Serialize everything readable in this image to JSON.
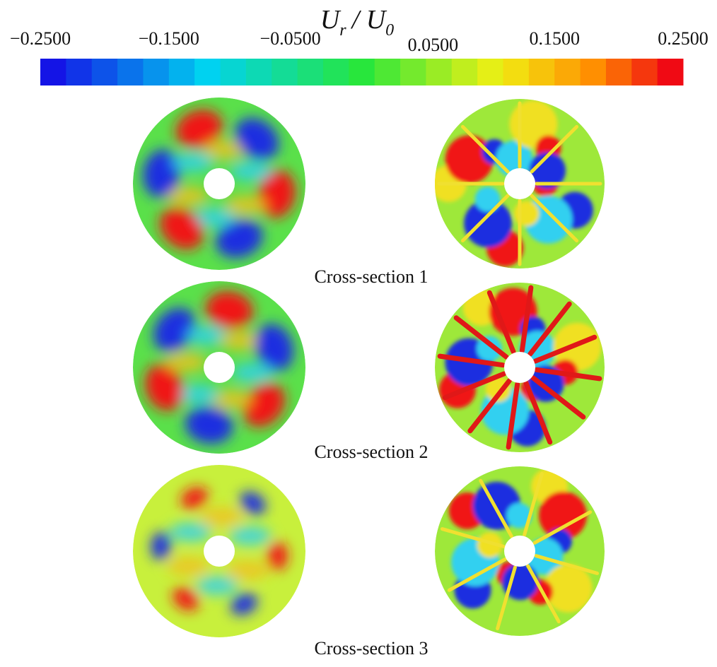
{
  "colorbar": {
    "title_parts": [
      "U",
      "r",
      "/ U",
      "0"
    ],
    "lim": [
      -0.25,
      0.25
    ],
    "ticks": [
      {
        "value": -0.25,
        "label": "−0.2500"
      },
      {
        "value": -0.15,
        "label": "−0.1500"
      },
      {
        "value": -0.05,
        "label": "−0.0500"
      },
      {
        "value": 0.05,
        "label": "0.0500"
      },
      {
        "value": 0.15,
        "label": "0.1500"
      },
      {
        "value": 0.25,
        "label": "0.2500"
      }
    ]
  },
  "panels": [
    {
      "label": "Cross-section 1"
    },
    {
      "label": "Cross-section 2"
    },
    {
      "label": "Cross-section 3"
    }
  ]
}
